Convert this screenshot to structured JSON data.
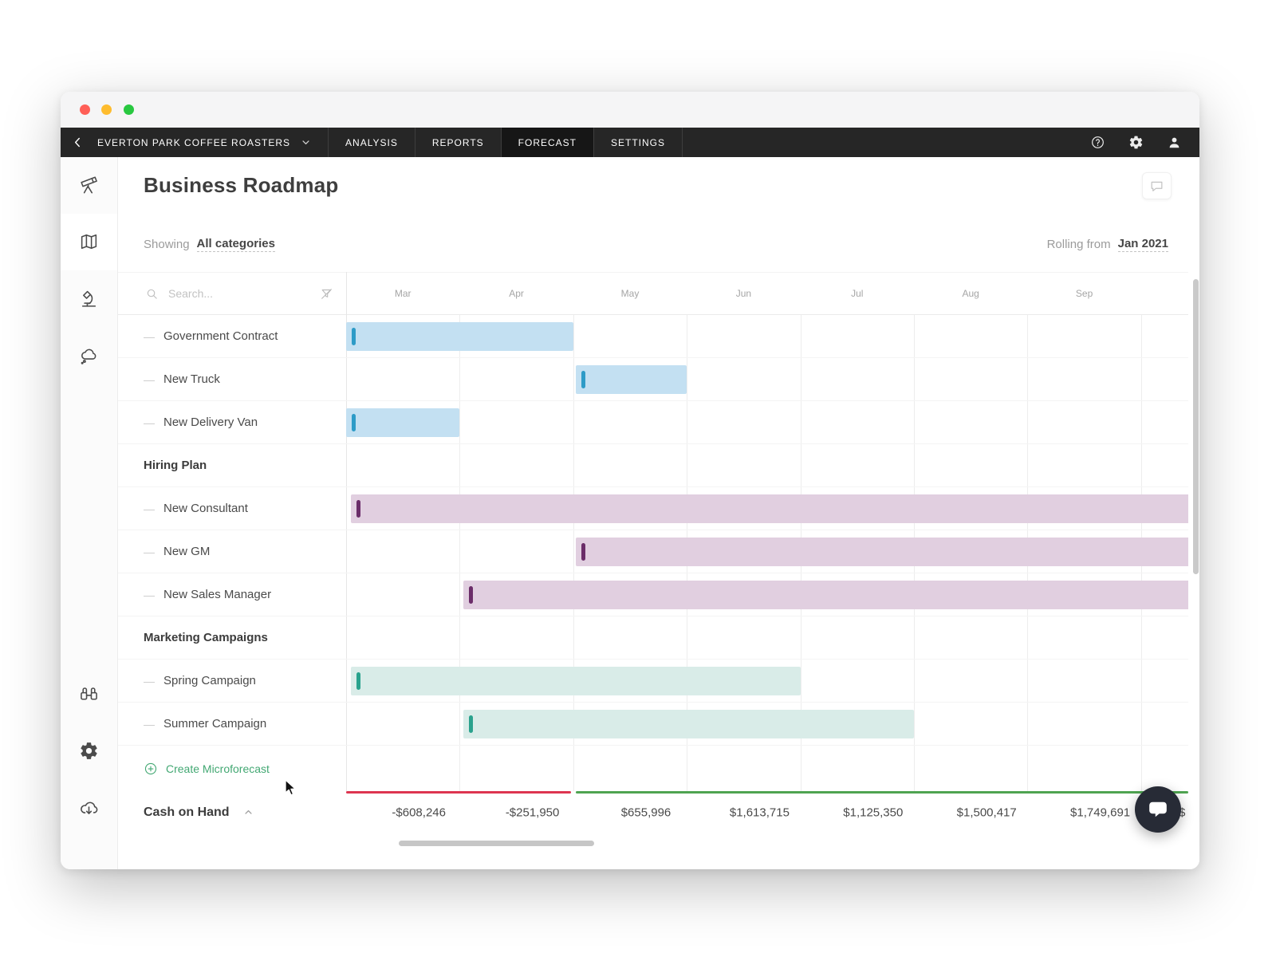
{
  "window": {
    "controls": [
      "close",
      "minimize",
      "zoom"
    ]
  },
  "topnav": {
    "company": "EVERTON PARK COFFEE ROASTERS",
    "tabs": [
      {
        "label": "ANALYSIS",
        "active": false
      },
      {
        "label": "REPORTS",
        "active": false
      },
      {
        "label": "FORECAST",
        "active": true
      },
      {
        "label": "SETTINGS",
        "active": false
      }
    ]
  },
  "sidebar": {
    "top_items": [
      {
        "icon": "telescope",
        "active": false
      },
      {
        "icon": "map",
        "active": true
      },
      {
        "icon": "microscope",
        "active": false
      },
      {
        "icon": "thought-cloud",
        "active": false
      }
    ],
    "bottom_items": [
      {
        "icon": "binoculars",
        "active": false
      },
      {
        "icon": "gear",
        "active": false
      },
      {
        "icon": "cloud-download",
        "active": false
      }
    ]
  },
  "header": {
    "title": "Business Roadmap",
    "showing_label": "Showing",
    "showing_value": "All categories",
    "rolling_label": "Rolling from",
    "rolling_value": "Jan 2021"
  },
  "search": {
    "placeholder": "Search..."
  },
  "gantt": {
    "months": [
      "Mar",
      "Apr",
      "May",
      "Jun",
      "Jul",
      "Aug",
      "Sep"
    ],
    "colors": {
      "blue": {
        "bar": "#c3e0f2",
        "marker": "#2d9bc7"
      },
      "purple": {
        "bar": "#e1cfe0",
        "marker": "#6b2d69"
      },
      "teal": {
        "bar": "#d9ece8",
        "marker": "#2aa28d"
      }
    },
    "rows": [
      {
        "type": "item",
        "label": "Government Contract",
        "bar": {
          "start": 0,
          "end": 2,
          "color": "blue"
        }
      },
      {
        "type": "item",
        "label": "New Truck",
        "bar": {
          "start": 2.02,
          "end": 3,
          "color": "blue"
        }
      },
      {
        "type": "item",
        "label": "New Delivery Van",
        "bar": {
          "start": 0,
          "end": 1,
          "color": "blue"
        }
      },
      {
        "type": "section",
        "label": "Hiring Plan"
      },
      {
        "type": "item",
        "label": "New Consultant",
        "bar": {
          "start": 0.04,
          "end": 7.45,
          "color": "purple"
        }
      },
      {
        "type": "item",
        "label": "New GM",
        "bar": {
          "start": 2.02,
          "end": 7.45,
          "color": "purple"
        }
      },
      {
        "type": "item",
        "label": "New Sales Manager",
        "bar": {
          "start": 1.03,
          "end": 7.45,
          "color": "purple"
        }
      },
      {
        "type": "section",
        "label": "Marketing Campaigns"
      },
      {
        "type": "item",
        "label": "Spring Campaign",
        "bar": {
          "start": 0.04,
          "end": 4,
          "color": "teal"
        }
      },
      {
        "type": "item",
        "label": "Summer Campaign",
        "bar": {
          "start": 1.03,
          "end": 5,
          "color": "teal"
        }
      },
      {
        "type": "create",
        "label": "Create Microforecast"
      }
    ]
  },
  "cash_on_hand": {
    "label": "Cash on Hand",
    "values": [
      {
        "text": "-$608,246",
        "negative": true
      },
      {
        "text": "-$251,950",
        "negative": true
      },
      {
        "text": "$655,996",
        "negative": false
      },
      {
        "text": "$1,613,715",
        "negative": false
      },
      {
        "text": "$1,125,350",
        "negative": false
      },
      {
        "text": "$1,500,417",
        "negative": false
      },
      {
        "text": "$1,749,691",
        "negative": false
      },
      {
        "text": "$",
        "negative": false,
        "partial": true
      }
    ],
    "negative_line_color": "#dd3550",
    "positive_line_color": "#4fa451"
  }
}
